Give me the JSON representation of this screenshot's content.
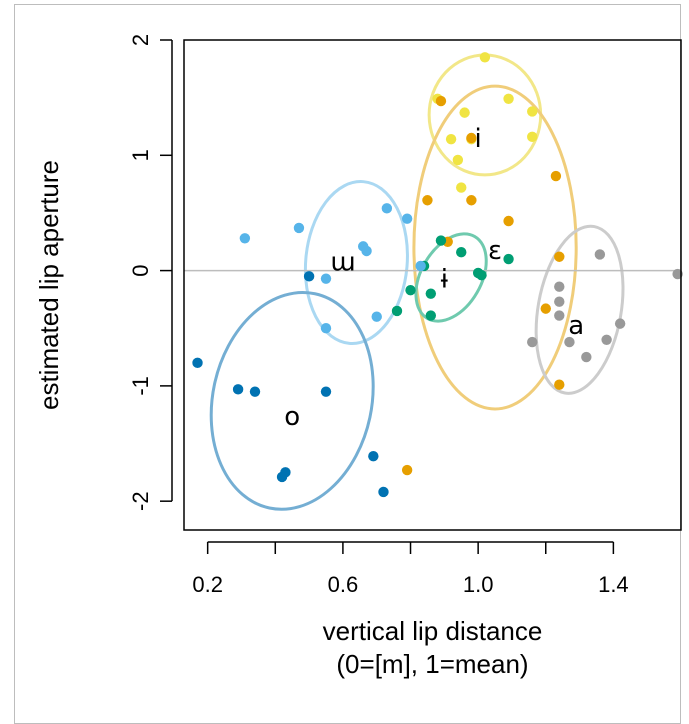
{
  "chart_data": {
    "type": "scatter",
    "title": "",
    "xlabel": "vertical lip distance",
    "xlabel_line2": "(0=[m], 1=mean)",
    "ylabel": "estimated lip aperture",
    "xlim": [
      0.13,
      1.6
    ],
    "ylim": [
      -2.25,
      2.0
    ],
    "x_ticks": [
      0.2,
      0.6,
      1.0,
      1.4
    ],
    "x_tick_labels": [
      "0.2",
      "0.6",
      "1.0",
      "1.4"
    ],
    "x_minor_ticks": [
      0.4,
      0.8,
      1.2
    ],
    "y_ticks": [
      -2,
      -1,
      0,
      1,
      2
    ],
    "y_tick_labels": [
      "-2",
      "-1",
      "0",
      "1",
      "2"
    ],
    "reference_line_y": 0,
    "grid": false,
    "series": [
      {
        "name": "i",
        "color": "#f0e442",
        "ellipse_color": "#f2e788",
        "label_pos": [
          1.0,
          1.15
        ],
        "ellipse": {
          "cx": 1.02,
          "cy": 1.35,
          "rx": 0.165,
          "ry": 0.52,
          "angle": 0
        },
        "points": [
          [
            1.02,
            1.85
          ],
          [
            0.88,
            1.49
          ],
          [
            0.96,
            1.37
          ],
          [
            1.09,
            1.49
          ],
          [
            1.16,
            1.38
          ],
          [
            0.92,
            1.14
          ],
          [
            1.16,
            1.16
          ],
          [
            0.94,
            0.96
          ],
          [
            0.95,
            0.72
          ],
          [
            0.98,
            1.14
          ]
        ]
      },
      {
        "name": "ɛ",
        "color": "#e69f00",
        "ellipse_color": "#f0cd7a",
        "label_pos": [
          1.05,
          0.18
        ],
        "ellipse": {
          "cx": 1.05,
          "cy": 0.2,
          "rx": 0.24,
          "ry": 1.4,
          "angle": 0
        },
        "points": [
          [
            0.89,
            1.47
          ],
          [
            0.98,
            1.15
          ],
          [
            1.23,
            0.82
          ],
          [
            0.85,
            0.61
          ],
          [
            0.98,
            0.61
          ],
          [
            1.09,
            0.43
          ],
          [
            0.91,
            0.25
          ],
          [
            1.24,
            0.12
          ],
          [
            1.2,
            -0.33
          ],
          [
            1.24,
            -0.99
          ],
          [
            0.79,
            -1.73
          ]
        ]
      },
      {
        "name": "ɨ",
        "color": "#009e73",
        "ellipse_color": "#6fcaae",
        "label_pos": [
          0.9,
          -0.07
        ],
        "ellipse": {
          "cx": 0.92,
          "cy": -0.06,
          "rx": 0.14,
          "ry": 0.26,
          "angle": 60
        },
        "points": [
          [
            0.89,
            0.26
          ],
          [
            0.95,
            0.16
          ],
          [
            0.84,
            0.04
          ],
          [
            1.0,
            -0.02
          ],
          [
            1.01,
            -0.04
          ],
          [
            1.09,
            0.1
          ],
          [
            0.8,
            -0.17
          ],
          [
            0.86,
            -0.2
          ],
          [
            0.76,
            -0.35
          ],
          [
            0.86,
            -0.39
          ]
        ]
      },
      {
        "name": "ɯ",
        "color": "#56b4e9",
        "ellipse_color": "#aad8f2",
        "label_pos": [
          0.6,
          0.08
        ],
        "ellipse": {
          "cx": 0.64,
          "cy": 0.07,
          "rx": 0.24,
          "ry": 0.44,
          "angle": 85
        },
        "points": [
          [
            0.31,
            0.28
          ],
          [
            0.47,
            0.37
          ],
          [
            0.73,
            0.54
          ],
          [
            0.79,
            0.45
          ],
          [
            0.66,
            0.21
          ],
          [
            0.67,
            0.17
          ],
          [
            0.55,
            -0.07
          ],
          [
            0.83,
            0.04
          ],
          [
            0.55,
            -0.5
          ],
          [
            0.7,
            -0.4
          ]
        ]
      },
      {
        "name": "o",
        "color": "#0072b2",
        "ellipse_color": "#74aed3",
        "label_pos": [
          0.45,
          -1.26
        ],
        "ellipse": {
          "cx": 0.45,
          "cy": -1.13,
          "rx": 0.235,
          "ry": 0.95,
          "angle": -12
        },
        "points": [
          [
            0.5,
            -0.05
          ],
          [
            0.17,
            -0.8
          ],
          [
            0.29,
            -1.03
          ],
          [
            0.34,
            -1.05
          ],
          [
            0.55,
            -1.05
          ],
          [
            0.69,
            -1.61
          ],
          [
            0.43,
            -1.75
          ],
          [
            0.42,
            -1.79
          ],
          [
            0.72,
            -1.92
          ]
        ]
      },
      {
        "name": "a",
        "color": "#999999",
        "ellipse_color": "#cccccc",
        "label_pos": [
          1.29,
          -0.47
        ],
        "ellipse": {
          "cx": 1.3,
          "cy": -0.34,
          "rx": 0.25,
          "ry": 0.36,
          "angle": 80
        },
        "points": [
          [
            1.36,
            0.14
          ],
          [
            1.59,
            -0.03
          ],
          [
            1.24,
            -0.14
          ],
          [
            1.24,
            -0.27
          ],
          [
            1.24,
            -0.39
          ],
          [
            1.42,
            -0.46
          ],
          [
            1.16,
            -0.62
          ],
          [
            1.27,
            -0.62
          ],
          [
            1.38,
            -0.6
          ],
          [
            1.32,
            -0.75
          ]
        ]
      }
    ]
  }
}
